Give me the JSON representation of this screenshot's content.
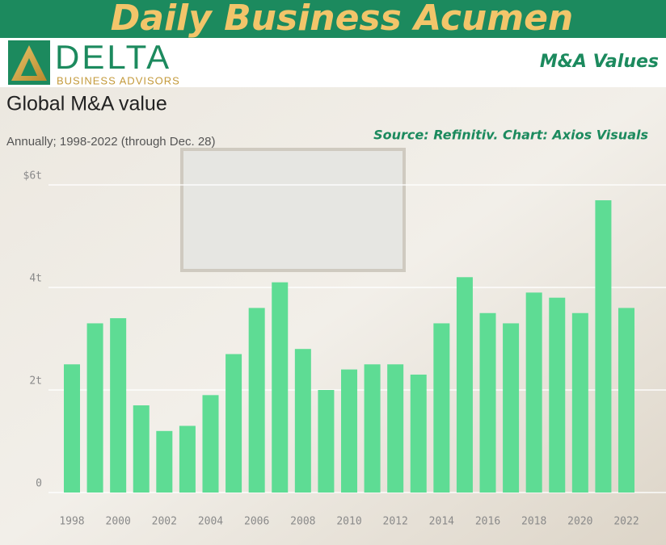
{
  "header": {
    "title": "Daily Business Acumen",
    "logo_name": "DELTA",
    "logo_tagline": "BUSINESS ADVISORS",
    "section": "M&A Values"
  },
  "chart_data": {
    "type": "bar",
    "title": "Global M&A value",
    "subtitle": "Annually; 1998-2022 (through Dec. 28)",
    "source": "Source: Refinitiv. Chart: Axios Visuals",
    "categories": [
      "1998",
      null,
      "2000",
      null,
      "2002",
      null,
      "2004",
      null,
      "2006",
      null,
      "2008",
      null,
      "2010",
      null,
      "2012",
      null,
      "2014",
      null,
      "2016",
      null,
      "2018",
      null,
      "2020",
      null,
      "2022"
    ],
    "values": [
      2.5,
      3.3,
      3.4,
      1.7,
      1.2,
      1.3,
      1.9,
      2.7,
      3.6,
      4.1,
      2.8,
      2.0,
      2.4,
      2.5,
      2.5,
      2.3,
      3.3,
      4.2,
      3.5,
      3.3,
      3.9,
      3.8,
      3.5,
      5.7,
      3.6
    ],
    "color": "#5edc94",
    "ylim": [
      0,
      6
    ],
    "yticks": [
      0,
      {
        "value": 2,
        "label": "2t"
      },
      {
        "value": 4,
        "label": "4t"
      },
      {
        "value": 6,
        "label": "$6t"
      }
    ],
    "grid": true
  }
}
